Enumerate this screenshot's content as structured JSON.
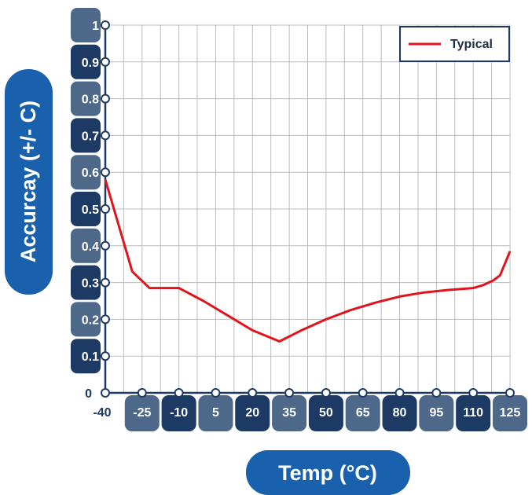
{
  "chart_data": {
    "type": "line",
    "xlabel": "Temp (°C)",
    "ylabel": "Accurcay (+/- C)",
    "xlim": [
      -40,
      125
    ],
    "ylim": [
      0,
      1
    ],
    "x_ticks": [
      "-40",
      "-25",
      "-10",
      "5",
      "20",
      "35",
      "50",
      "65",
      "80",
      "95",
      "110",
      "125"
    ],
    "y_ticks": [
      "0",
      "0.1",
      "0.2",
      "0.3",
      "0.4",
      "0.5",
      "0.6",
      "0.7",
      "0.8",
      "0.9",
      "1"
    ],
    "grid": true,
    "legend_position": "top-right",
    "series": [
      {
        "name": "Typical",
        "color": "#e0141c",
        "points": [
          [
            -40,
            0.58
          ],
          [
            -29,
            0.33
          ],
          [
            -22,
            0.285
          ],
          [
            -10,
            0.285
          ],
          [
            0,
            0.25
          ],
          [
            10,
            0.21
          ],
          [
            20,
            0.17
          ],
          [
            31,
            0.14
          ],
          [
            40,
            0.17
          ],
          [
            50,
            0.2
          ],
          [
            60,
            0.225
          ],
          [
            70,
            0.245
          ],
          [
            80,
            0.262
          ],
          [
            90,
            0.273
          ],
          [
            100,
            0.28
          ],
          [
            110,
            0.285
          ],
          [
            114,
            0.293
          ],
          [
            118,
            0.305
          ],
          [
            121,
            0.32
          ],
          [
            125,
            0.385
          ]
        ]
      }
    ]
  },
  "colors": {
    "pill_dark": "#1c3a63",
    "pill_light": "#4d6888",
    "grid": "#bcbcbc",
    "axis": "#1c3a63",
    "accent_pill": "#1a61ad"
  }
}
